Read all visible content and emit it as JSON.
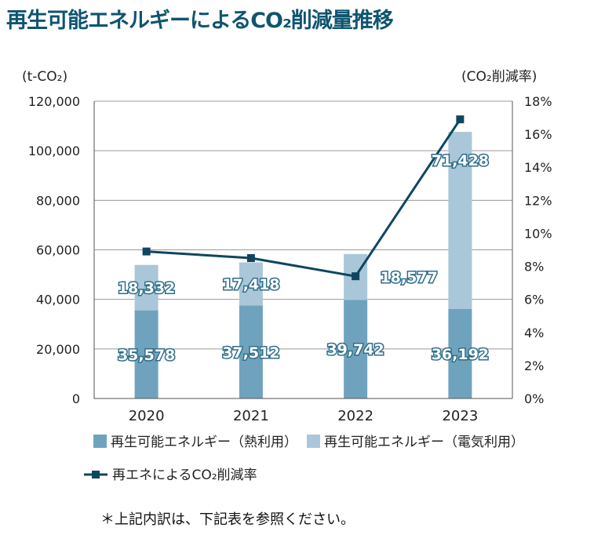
{
  "title": "再生可能エネルギーによるCO₂削減量推移",
  "footnote": "＊上記内訳は、下記表を参照ください。",
  "chart_data": {
    "type": "bar",
    "stacked": true,
    "categories": [
      "2020",
      "2021",
      "2022",
      "2023"
    ],
    "y_left": {
      "label": "(t-CO₂)",
      "min": 0,
      "max": 120000,
      "ticks": [
        "0",
        "20,000",
        "40,000",
        "60,000",
        "80,000",
        "100,000",
        "120,000"
      ]
    },
    "y_right": {
      "label": "(CO₂削減率)",
      "min": 0,
      "max": 18,
      "ticks": [
        "0%",
        "2%",
        "4%",
        "6%",
        "8%",
        "10%",
        "12%",
        "14%",
        "16%",
        "18%"
      ]
    },
    "series": [
      {
        "name": "再生可能エネルギー（熱利用）",
        "type": "bar",
        "axis": "left",
        "color": "#6fa3bd",
        "values": [
          35578,
          37512,
          39742,
          36192
        ],
        "labels": [
          "35,578",
          "37,512",
          "39,742",
          "36,192"
        ]
      },
      {
        "name": "再生可能エネルギー（電気利用）",
        "type": "bar",
        "axis": "left",
        "color": "#a9c7d8",
        "values": [
          18332,
          17418,
          18577,
          71428
        ],
        "labels": [
          "18,332",
          "17,418",
          "18,577",
          "71,428"
        ]
      },
      {
        "name": "再エネによるCO₂削減率",
        "type": "line",
        "axis": "right",
        "color": "#0e4660",
        "values": [
          8.9,
          8.5,
          7.4,
          16.9
        ]
      }
    ],
    "grid": "horizontal",
    "legend_position": "bottom"
  }
}
